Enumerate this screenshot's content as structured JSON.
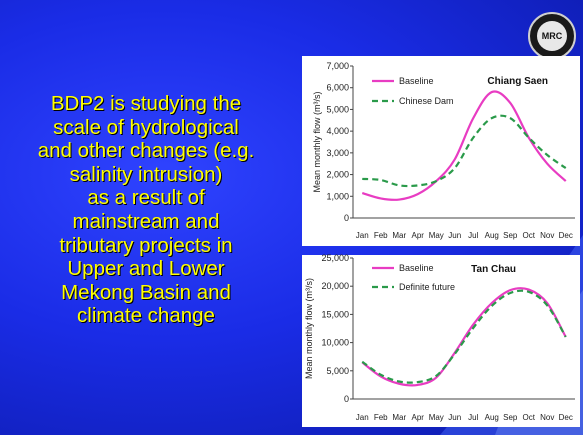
{
  "slide": {
    "body_lines": [
      "BDP2 is studying the",
      "scale of hydrological",
      "and other changes (e.g.",
      "salinity intrusion)",
      "as a result of",
      "mainstream and",
      "tributary projects in",
      "Upper and Lower",
      "Mekong Basin and",
      "climate change"
    ],
    "logo_text": "MRC",
    "colors": {
      "background": "#1a2ce6",
      "text": "#ffff00",
      "baseline": "#e83cc2",
      "alt": "#2a9a4a"
    }
  },
  "chart_data": [
    {
      "type": "line",
      "title": "Chiang Saen",
      "ylabel": "Mean monthly flow (m³/s)",
      "xlabel": "",
      "categories": [
        "Jan",
        "Feb",
        "Mar",
        "Apr",
        "May",
        "Jun",
        "Jul",
        "Aug",
        "Sep",
        "Oct",
        "Nov",
        "Dec"
      ],
      "ylim": [
        0,
        7000
      ],
      "yticks": [
        0,
        1000,
        2000,
        3000,
        4000,
        5000,
        6000,
        7000
      ],
      "ytick_labels": [
        "0",
        "1,000",
        "2,000",
        "3,000",
        "4,000",
        "5,000",
        "6,000",
        "7,000"
      ],
      "grid": false,
      "legend": "top-left",
      "series": [
        {
          "name": "Baseline",
          "style": "solid",
          "color": "#e83cc2",
          "values": [
            1150,
            900,
            850,
            1100,
            1700,
            2700,
            4600,
            5800,
            5300,
            3700,
            2500,
            1700
          ]
        },
        {
          "name": "Chinese Dam",
          "style": "dashed",
          "color": "#2a9a4a",
          "values": [
            1800,
            1750,
            1500,
            1500,
            1700,
            2300,
            3700,
            4600,
            4600,
            3700,
            2900,
            2300
          ]
        }
      ]
    },
    {
      "type": "line",
      "title": "Tan Chau",
      "ylabel": "Mean monthly flow (m³/s)",
      "xlabel": "",
      "categories": [
        "Jan",
        "Feb",
        "Mar",
        "Apr",
        "May",
        "Jun",
        "Jul",
        "Aug",
        "Sep",
        "Oct",
        "Nov",
        "Dec"
      ],
      "ylim": [
        0,
        25000
      ],
      "yticks": [
        0,
        5000,
        10000,
        15000,
        20000,
        25000
      ],
      "ytick_labels": [
        "0",
        "5,000",
        "10,000",
        "15,000",
        "20,000",
        "25,000"
      ],
      "grid": false,
      "legend": "top-left",
      "series": [
        {
          "name": "Baseline",
          "style": "solid",
          "color": "#e83cc2",
          "values": [
            6500,
            4000,
            2700,
            2500,
            3800,
            8200,
            13200,
            17000,
            19300,
            19400,
            17000,
            11000
          ]
        },
        {
          "name": "Definite future",
          "style": "dashed",
          "color": "#2a9a4a",
          "values": [
            6600,
            4300,
            3100,
            3000,
            4100,
            8000,
            12600,
            16500,
            18800,
            19000,
            16600,
            11000
          ]
        }
      ]
    }
  ]
}
